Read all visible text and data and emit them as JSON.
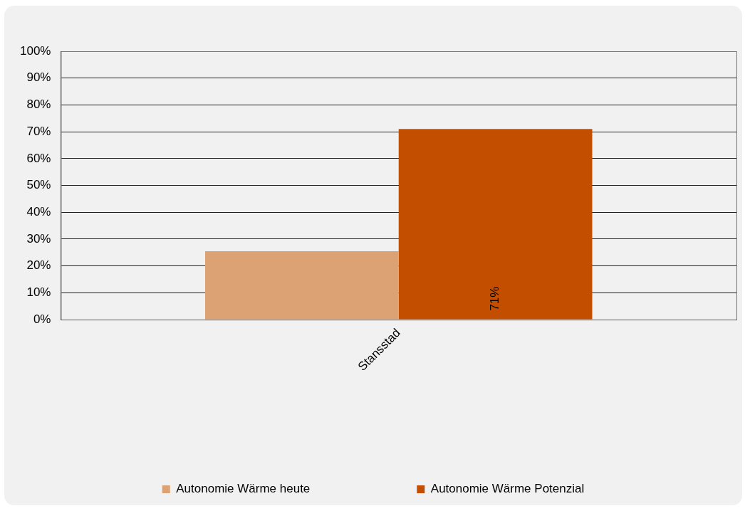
{
  "chart_data": {
    "type": "bar",
    "categories": [
      "Stansstad"
    ],
    "series": [
      {
        "name": "Autonomie Wärme heute",
        "color": "#dca274",
        "values": [
          25.5
        ]
      },
      {
        "name": "Autonomie Wärme Potenzial",
        "color": "#c44e00",
        "values": [
          71
        ],
        "value_labels": [
          "71%"
        ]
      }
    ],
    "ylim": [
      0,
      100
    ],
    "yticks": [
      {
        "value": 0,
        "label": "0%"
      },
      {
        "value": 10,
        "label": "10%"
      },
      {
        "value": 20,
        "label": "20%"
      },
      {
        "value": 30,
        "label": "30%"
      },
      {
        "value": 40,
        "label": "40%"
      },
      {
        "value": 50,
        "label": "50%"
      },
      {
        "value": 60,
        "label": "60%"
      },
      {
        "value": 70,
        "label": "70%"
      },
      {
        "value": 80,
        "label": "80%"
      },
      {
        "value": 90,
        "label": "90%"
      },
      {
        "value": 100,
        "label": "100%"
      }
    ],
    "grid": "y",
    "legend": "bottom"
  }
}
